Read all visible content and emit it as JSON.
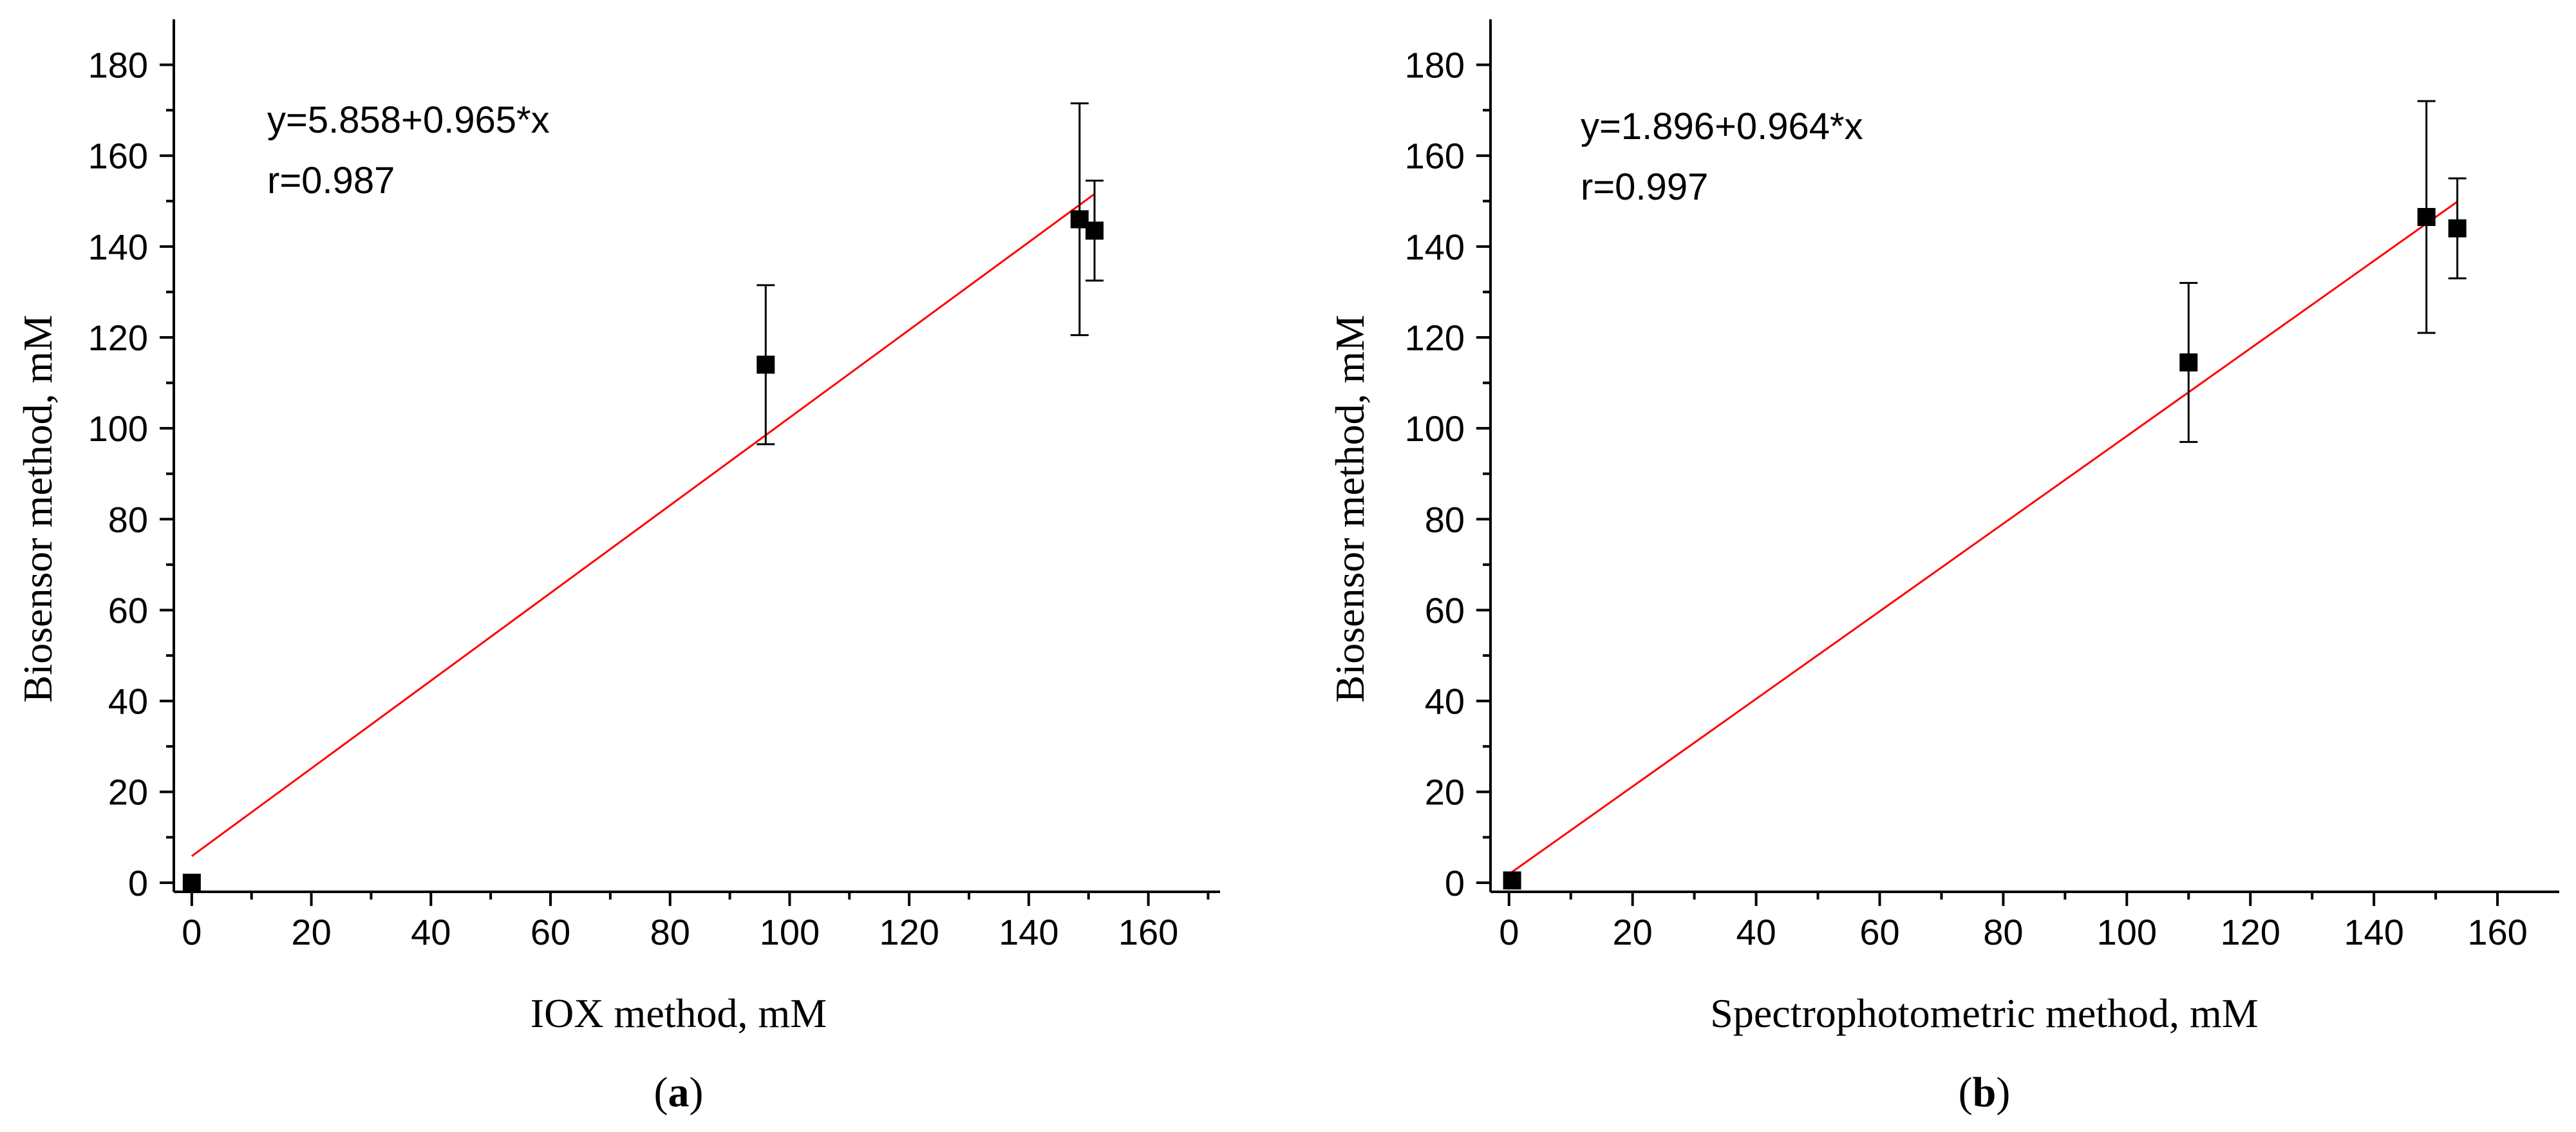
{
  "chart_data": [
    {
      "type": "scatter",
      "panel_label": "a",
      "title": "",
      "xlabel": "IOX method, mM",
      "ylabel": "Biosensor method, mM",
      "xlim": [
        -3,
        172
      ],
      "ylim": [
        -2,
        190
      ],
      "xticks": [
        0,
        20,
        40,
        60,
        80,
        100,
        120,
        140,
        160
      ],
      "yticks": [
        0,
        20,
        40,
        60,
        80,
        100,
        120,
        140,
        160,
        180
      ],
      "grid": false,
      "points": [
        {
          "x": 0,
          "y": 0,
          "err": 0
        },
        {
          "x": 96,
          "y": 114,
          "err": 17.5
        },
        {
          "x": 148.5,
          "y": 146,
          "err": 25.5
        },
        {
          "x": 151,
          "y": 143.5,
          "err": 11
        }
      ],
      "fit": {
        "intercept": 5.858,
        "slope": 0.965,
        "x_range": [
          0,
          151
        ]
      },
      "equation": "y=5.858+0.965*x",
      "r_label": "r=0.987"
    },
    {
      "type": "scatter",
      "panel_label": "b",
      "title": "",
      "xlabel": "Spectrophotometric method, mM",
      "ylabel": "Biosensor method, mM",
      "xlim": [
        -3,
        170
      ],
      "ylim": [
        -2,
        190
      ],
      "xticks": [
        0,
        20,
        40,
        60,
        80,
        100,
        120,
        140,
        160
      ],
      "yticks": [
        0,
        20,
        40,
        60,
        80,
        100,
        120,
        140,
        160,
        180
      ],
      "grid": false,
      "points": [
        {
          "x": 0.5,
          "y": 0.5,
          "err": 0
        },
        {
          "x": 110,
          "y": 114.5,
          "err": 17.5
        },
        {
          "x": 148.5,
          "y": 146.5,
          "err": 25.5
        },
        {
          "x": 153.5,
          "y": 144,
          "err": 11
        }
      ],
      "fit": {
        "intercept": 1.896,
        "slope": 0.964,
        "x_range": [
          0,
          153.5
        ]
      },
      "equation": "y=1.896+0.964*x",
      "r_label": "r=0.997"
    }
  ]
}
